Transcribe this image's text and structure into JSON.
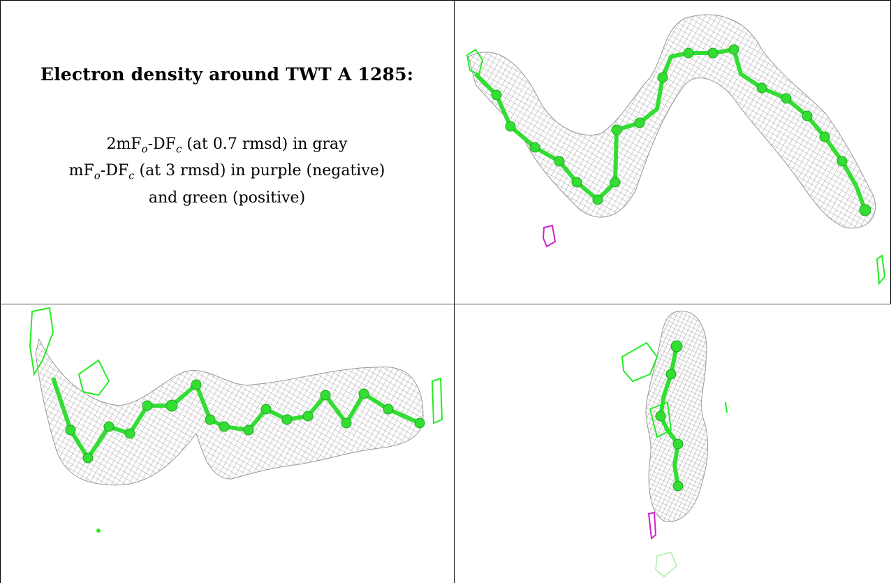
{
  "caption": {
    "title": "Electron density around TWT A 1285:",
    "lines": [
      {
        "prefix": "2mF",
        "sub1": "o",
        "mid": "-DF",
        "sub2": "c",
        "suffix": " (at 0.7 rmsd) in gray"
      },
      {
        "prefix": "mF",
        "sub1": "o",
        "mid": "-DF",
        "sub2": "c",
        "suffix": " (at 3 rmsd) in purple (negative)"
      },
      {
        "text": "and green (positive)"
      }
    ]
  },
  "colors": {
    "mesh_gray": "#8c8c8c",
    "model_green": "#33dd33",
    "positive_green": "#22ee22",
    "negative_purple": "#cc22cc"
  },
  "panels": [
    {
      "name": "view-top-right",
      "description_icon": "density-mesh"
    },
    {
      "name": "view-bottom-left",
      "description_icon": "density-mesh"
    },
    {
      "name": "view-bottom-right",
      "description_icon": "density-mesh"
    }
  ]
}
